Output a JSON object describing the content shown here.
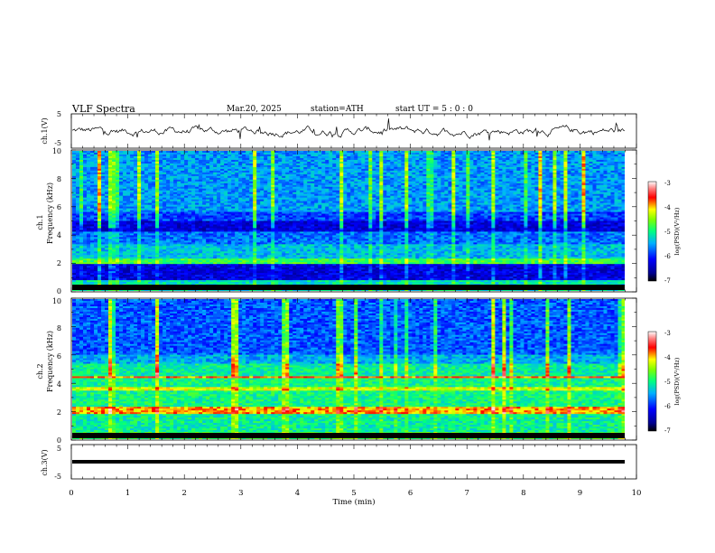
{
  "header": {
    "title": "VLF  Spectra",
    "date": "Mar.20, 2025",
    "station": "station=ATH",
    "start": "start  UT  =    5  : 0   : 0"
  },
  "chart_data": [
    {
      "type": "line",
      "name": "ch1-waveform",
      "ylabel": "ch.1(V)",
      "ylim": [
        -5,
        5
      ],
      "yticks": [
        "5",
        "-5"
      ],
      "xlim": [
        0,
        10
      ]
    },
    {
      "type": "heatmap",
      "name": "ch1-spectrogram",
      "ylabel_channel": "ch.1",
      "ylabel": "Frequency  (kHz)",
      "ylim": [
        0,
        10
      ],
      "yticks": [
        "0",
        "2",
        "4",
        "6",
        "8",
        "10"
      ],
      "xlim": [
        0,
        9.8
      ],
      "colorbar": {
        "label": "log(PSD)(V²/Hz)",
        "ticks": [
          "-3",
          "-4",
          "-5",
          "-6",
          "-7"
        ],
        "range": [
          -7,
          -3
        ]
      }
    },
    {
      "type": "heatmap",
      "name": "ch2-spectrogram",
      "ylabel_channel": "ch.2",
      "ylabel": "Frequency  (kHz)",
      "ylim": [
        0,
        10
      ],
      "yticks": [
        "0",
        "2",
        "4",
        "6",
        "8",
        "10"
      ],
      "xlim": [
        0,
        9.8
      ],
      "colorbar": {
        "label": "log(PSD)(V²/Hz)",
        "ticks": [
          "-3",
          "-4",
          "-5",
          "-6",
          "-7"
        ],
        "range": [
          -7,
          -3
        ]
      }
    },
    {
      "type": "line",
      "name": "ch3-waveform",
      "ylabel": "ch.3(V)",
      "ylim": [
        -5,
        5
      ],
      "yticks": [
        "5",
        "-5"
      ],
      "xlim": [
        0,
        10
      ]
    }
  ],
  "xaxis": {
    "label": "Time  (min)",
    "ticks": [
      "0",
      "1",
      "2",
      "3",
      "4",
      "5",
      "6",
      "7",
      "8",
      "9",
      "10"
    ]
  },
  "colors": {
    "low": "#000080",
    "blue": "#0000ff",
    "cyan": "#00ccff",
    "green": "#00ff60",
    "yellow": "#ffff00",
    "red": "#ff0000",
    "high": "#ffffff"
  }
}
